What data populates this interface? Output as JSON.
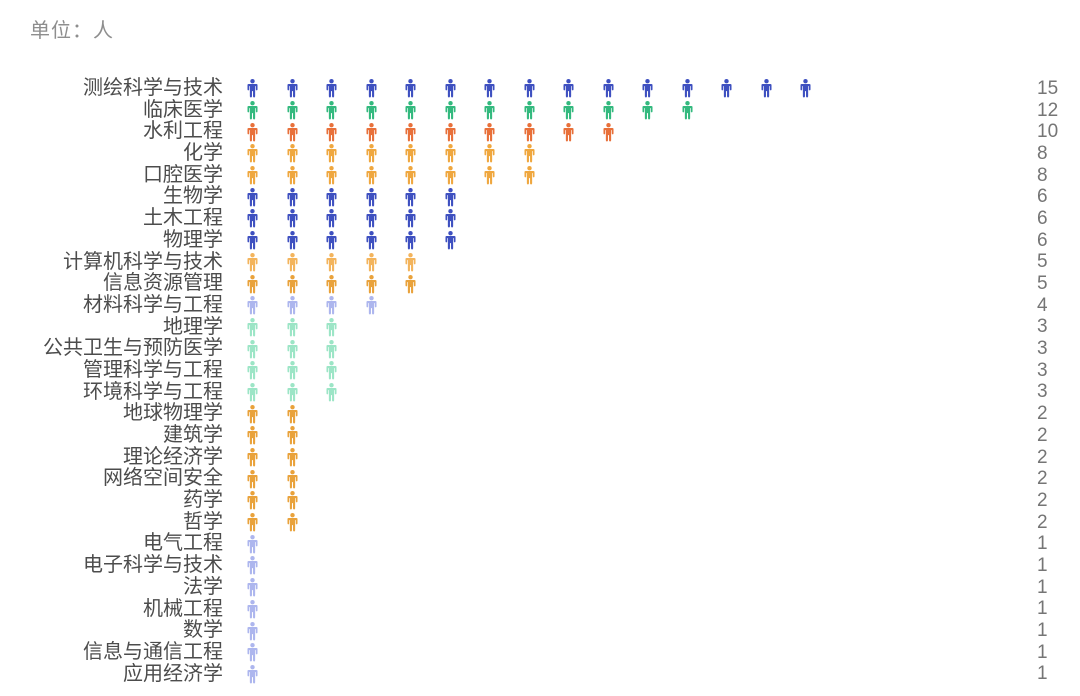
{
  "title": "单位：人",
  "palette": {
    "blue": "#3E50C0",
    "green": "#33B97E",
    "orange_red": "#E8703A",
    "amber": "#EFA73F",
    "pale_amber": "#F3B45C",
    "deep_amber": "#E9A23B",
    "periwinkle": "#ADB6EE",
    "mint": "#9CE5C6"
  },
  "chart_data": {
    "type": "bar",
    "subtype": "pictorial-person-icons",
    "title": "单位：人",
    "xlabel": "",
    "ylabel": "",
    "legend": "none",
    "grid": false,
    "orientation": "horizontal",
    "icon": "person-icon",
    "icon_unit_value": 1,
    "categories": [
      "测绘科学与技术",
      "临床医学",
      "水利工程",
      "化学",
      "口腔医学",
      "生物学",
      "土木工程",
      "物理学",
      "计算机科学与技术",
      "信息资源管理",
      "材料科学与工程",
      "地理学",
      "公共卫生与预防医学",
      "管理科学与工程",
      "环境科学与工程",
      "地球物理学",
      "建筑学",
      "理论经济学",
      "网络空间安全",
      "药学",
      "哲学",
      "电气工程",
      "电子科学与技术",
      "法学",
      "机械工程",
      "数学",
      "信息与通信工程",
      "应用经济学"
    ],
    "values": [
      15,
      12,
      10,
      8,
      8,
      6,
      6,
      6,
      5,
      5,
      4,
      3,
      3,
      3,
      3,
      2,
      2,
      2,
      2,
      2,
      2,
      1,
      1,
      1,
      1,
      1,
      1,
      1
    ],
    "rows": [
      {
        "label": "测绘科学与技术",
        "value": 15,
        "color": "#3E50C0"
      },
      {
        "label": "临床医学",
        "value": 12,
        "color": "#33B97E"
      },
      {
        "label": "水利工程",
        "value": 10,
        "color": "#E8703A"
      },
      {
        "label": "化学",
        "value": 8,
        "color": "#EFA73F"
      },
      {
        "label": "口腔医学",
        "value": 8,
        "color": "#EFA73F"
      },
      {
        "label": "生物学",
        "value": 6,
        "color": "#3E50C0"
      },
      {
        "label": "土木工程",
        "value": 6,
        "color": "#3E50C0"
      },
      {
        "label": "物理学",
        "value": 6,
        "color": "#3E50C0"
      },
      {
        "label": "计算机科学与技术",
        "value": 5,
        "color": "#F3B45C"
      },
      {
        "label": "信息资源管理",
        "value": 5,
        "color": "#E9A23B"
      },
      {
        "label": "材料科学与工程",
        "value": 4,
        "color": "#ADB6EE"
      },
      {
        "label": "地理学",
        "value": 3,
        "color": "#9CE5C6"
      },
      {
        "label": "公共卫生与预防医学",
        "value": 3,
        "color": "#9CE5C6"
      },
      {
        "label": "管理科学与工程",
        "value": 3,
        "color": "#9CE5C6"
      },
      {
        "label": "环境科学与工程",
        "value": 3,
        "color": "#9CE5C6"
      },
      {
        "label": "地球物理学",
        "value": 2,
        "color": "#E9A23B"
      },
      {
        "label": "建筑学",
        "value": 2,
        "color": "#E9A23B"
      },
      {
        "label": "理论经济学",
        "value": 2,
        "color": "#E9A23B"
      },
      {
        "label": "网络空间安全",
        "value": 2,
        "color": "#E9A23B"
      },
      {
        "label": "药学",
        "value": 2,
        "color": "#E9A23B"
      },
      {
        "label": "哲学",
        "value": 2,
        "color": "#E9A23B"
      },
      {
        "label": "电气工程",
        "value": 1,
        "color": "#ADB6EE"
      },
      {
        "label": "电子科学与技术",
        "value": 1,
        "color": "#ADB6EE"
      },
      {
        "label": "法学",
        "value": 1,
        "color": "#ADB6EE"
      },
      {
        "label": "机械工程",
        "value": 1,
        "color": "#ADB6EE"
      },
      {
        "label": "数学",
        "value": 1,
        "color": "#ADB6EE"
      },
      {
        "label": "信息与通信工程",
        "value": 1,
        "color": "#ADB6EE"
      },
      {
        "label": "应用经济学",
        "value": 1,
        "color": "#ADB6EE"
      }
    ]
  }
}
